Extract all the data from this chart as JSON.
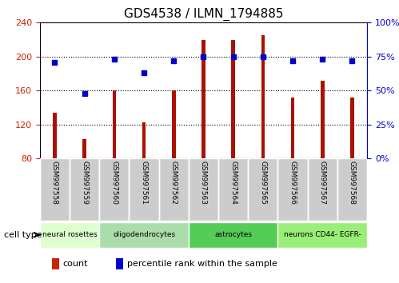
{
  "title": "GDS4538 / ILMN_1794885",
  "samples": [
    "GSM997558",
    "GSM997559",
    "GSM997560",
    "GSM997561",
    "GSM997562",
    "GSM997563",
    "GSM997564",
    "GSM997565",
    "GSM997566",
    "GSM997567",
    "GSM997568"
  ],
  "counts": [
    134,
    103,
    160,
    123,
    160,
    220,
    220,
    225,
    152,
    172,
    152
  ],
  "percentile_ranks": [
    71,
    48,
    73,
    63,
    72,
    75,
    75,
    75,
    72,
    73,
    72
  ],
  "cell_types": [
    {
      "label": "neural rosettes",
      "start": 0,
      "end": 2,
      "color": "#ddffdd"
    },
    {
      "label": "oligodendrocytes",
      "start": 2,
      "end": 5,
      "color": "#bbeeaa"
    },
    {
      "label": "astrocytes",
      "start": 5,
      "end": 8,
      "color": "#55dd55"
    },
    {
      "label": "neurons CD44- EGFR-",
      "start": 8,
      "end": 11,
      "color": "#99ee88"
    }
  ],
  "ylim_left": [
    80,
    240
  ],
  "ylim_right": [
    0,
    100
  ],
  "yticks_left": [
    80,
    120,
    160,
    200,
    240
  ],
  "yticks_right": [
    0,
    25,
    50,
    75,
    100
  ],
  "bar_color": "#aa1100",
  "scatter_color": "#0000cc",
  "grid_color": "#000000",
  "bg_color": "#ffffff",
  "left_axis_color": "#cc2200",
  "right_axis_color": "#0000cc",
  "sample_box_color": "#cccccc",
  "legend_items": [
    {
      "label": "count",
      "color": "#cc2200"
    },
    {
      "label": "percentile rank within the sample",
      "color": "#0000cc"
    }
  ],
  "cell_type_label": "cell type"
}
